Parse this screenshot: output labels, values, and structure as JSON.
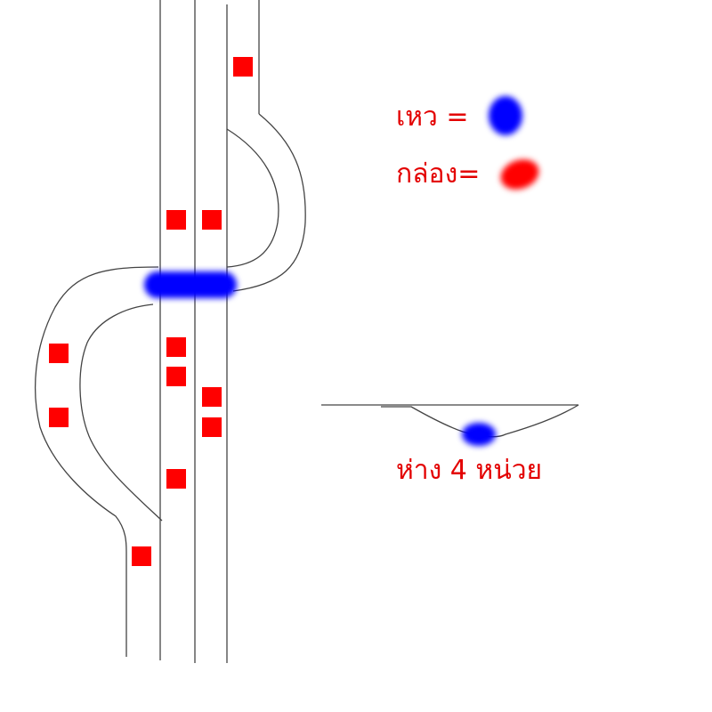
{
  "legend": {
    "gap_label": "เหว =",
    "box_label": "กล่อง="
  },
  "inset": {
    "caption": "ห่าง 4 หน่วย"
  },
  "colors": {
    "box": "#ff0000",
    "gap": "#0000ff",
    "line": "#444444",
    "text": "#e30000"
  }
}
